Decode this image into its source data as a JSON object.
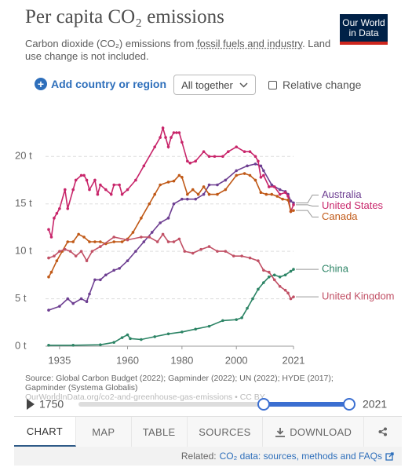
{
  "header": {
    "title": "Per capita CO₂ emissions",
    "logo": "Our World in Data",
    "subtitle_before": "Carbon dioxide (CO₂) emissions from ",
    "subtitle_link": "fossil fuels and industry",
    "subtitle_after": ". Land use change is not included."
  },
  "controls": {
    "add": "Add country or region",
    "dropdown": "All together",
    "relative": "Relative change"
  },
  "chart_data": {
    "type": "line",
    "xlim": [
      1931,
      2021
    ],
    "xticks": [
      1935,
      1960,
      1980,
      2000,
      2021
    ],
    "ylim": [
      0,
      23
    ],
    "yticks": [
      {
        "value": 0,
        "label": "0 t"
      },
      {
        "value": 5,
        "label": "5 t"
      },
      {
        "value": 10,
        "label": "10 t"
      },
      {
        "value": 15,
        "label": "15 t"
      },
      {
        "value": 20,
        "label": "20 t"
      }
    ],
    "grid": true,
    "series": [
      {
        "name": "Australia",
        "color": "#6d3e91",
        "x": [
          1931,
          1935,
          1938,
          1940,
          1943,
          1945,
          1946,
          1948,
          1950,
          1952,
          1955,
          1957,
          1960,
          1963,
          1966,
          1969,
          1972,
          1975,
          1977,
          1980,
          1982,
          1985,
          1988,
          1990,
          1993,
          1996,
          2000,
          2004,
          2007,
          2009,
          2010,
          2013,
          2016,
          2018,
          2019,
          2020,
          2021
        ],
        "values": [
          3.8,
          4.2,
          5,
          4.5,
          5,
          4.7,
          5.5,
          7,
          7,
          7.5,
          8,
          8.2,
          9,
          10,
          11,
          12,
          13,
          13.5,
          15,
          15.5,
          15.5,
          15.5,
          16,
          17,
          17,
          17.5,
          18.5,
          19,
          19.2,
          19,
          18.5,
          17,
          16.5,
          16.3,
          16,
          15.3,
          15.1
        ]
      },
      {
        "name": "United States",
        "color": "#c8256a",
        "x": [
          1931,
          1932,
          1933,
          1934,
          1935,
          1937,
          1938,
          1940,
          1941,
          1943,
          1944,
          1945,
          1946,
          1948,
          1949,
          1950,
          1952,
          1954,
          1955,
          1957,
          1958,
          1960,
          1963,
          1966,
          1970,
          1972,
          1973,
          1974,
          1975,
          1976,
          1977,
          1978,
          1979,
          1980,
          1982,
          1983,
          1985,
          1988,
          1990,
          1992,
          1995,
          1997,
          2000,
          2003,
          2005,
          2007,
          2008,
          2009,
          2010,
          2012,
          2014,
          2016,
          2018,
          2019,
          2020,
          2021
        ],
        "values": [
          12.3,
          11.5,
          13.5,
          14,
          14.5,
          16.5,
          14.5,
          16.5,
          17.5,
          18,
          18,
          17.5,
          16.5,
          17.5,
          16,
          17,
          16.5,
          16,
          17,
          17,
          16,
          16.5,
          17.5,
          19,
          21,
          22,
          23,
          22,
          21,
          22,
          22.5,
          22.5,
          22.5,
          21.5,
          19.5,
          19.3,
          19.5,
          20.5,
          20,
          20,
          20,
          20.5,
          21,
          20.5,
          20.5,
          20,
          19.5,
          17.8,
          18,
          16.8,
          16.8,
          16,
          16.2,
          15.8,
          14.2,
          14.9
        ]
      },
      {
        "name": "Canada",
        "color": "#c05917",
        "x": [
          1931,
          1932,
          1934,
          1936,
          1938,
          1940,
          1942,
          1944,
          1946,
          1948,
          1950,
          1952,
          1955,
          1958,
          1960,
          1962,
          1965,
          1968,
          1970,
          1972,
          1975,
          1977,
          1979,
          1980,
          1982,
          1984,
          1986,
          1988,
          1990,
          1993,
          1996,
          2000,
          2003,
          2005,
          2007,
          2009,
          2011,
          2013,
          2015,
          2017,
          2019,
          2020,
          2021
        ],
        "values": [
          7.3,
          7.8,
          9,
          10,
          11,
          11,
          11.8,
          11.5,
          11,
          11,
          11,
          10.8,
          11,
          11,
          11.3,
          12,
          13.5,
          15,
          16,
          17,
          17.3,
          17.4,
          18,
          17.8,
          16,
          16.5,
          16,
          16.8,
          16,
          16,
          16.5,
          18,
          18.2,
          18,
          17.5,
          16.2,
          16,
          16,
          15.8,
          15.5,
          15.4,
          14.2,
          14.3
        ]
      },
      {
        "name": "China",
        "color": "#2c8465",
        "x": [
          1931,
          1940,
          1950,
          1955,
          1958,
          1960,
          1961,
          1965,
          1970,
          1975,
          1980,
          1985,
          1990,
          1995,
          2000,
          2002,
          2004,
          2006,
          2008,
          2010,
          2012,
          2014,
          2016,
          2018,
          2020,
          2021
        ],
        "values": [
          0.1,
          0.1,
          0.15,
          0.4,
          0.9,
          1.2,
          0.8,
          0.7,
          1,
          1.3,
          1.5,
          1.8,
          2.1,
          2.7,
          2.8,
          3,
          4,
          5,
          6,
          6.7,
          7.3,
          7.5,
          7.3,
          7.5,
          7.9,
          8.1
        ]
      },
      {
        "name": "United Kingdom",
        "color": "#c15065",
        "x": [
          1931,
          1933,
          1935,
          1937,
          1939,
          1941,
          1943,
          1945,
          1947,
          1950,
          1955,
          1960,
          1965,
          1968,
          1971,
          1973,
          1975,
          1977,
          1979,
          1981,
          1984,
          1987,
          1990,
          1993,
          1996,
          1999,
          2002,
          2005,
          2008,
          2010,
          2012,
          2014,
          2016,
          2018,
          2019,
          2020,
          2021
        ],
        "values": [
          9.3,
          9.5,
          10,
          10.2,
          10,
          9.5,
          10,
          9,
          10,
          10.5,
          11.5,
          11.2,
          11.5,
          11.5,
          11,
          11.8,
          11,
          11,
          11.3,
          10,
          9.8,
          10.2,
          10.5,
          10,
          10,
          9.5,
          9.5,
          9.3,
          9,
          8,
          7.8,
          7,
          6.3,
          5.9,
          5.6,
          5,
          5.2
        ]
      }
    ]
  },
  "source": {
    "line1": "Source: Global Carbon Budget (2022); Gapminder (2022); UN (2022); HYDE (2017); Gapminder (Systema Globalis)",
    "line2": "OurWorldInData.org/co2-and-greenhouse-gas-emissions • CC BY"
  },
  "timeline": {
    "start": "1750",
    "end": "2021"
  },
  "tabs": [
    "CHART",
    "MAP",
    "TABLE",
    "SOURCES",
    "DOWNLOAD"
  ],
  "footer": {
    "prefix": "Related:",
    "link": "CO₂ data: sources, methods and FAQs"
  }
}
